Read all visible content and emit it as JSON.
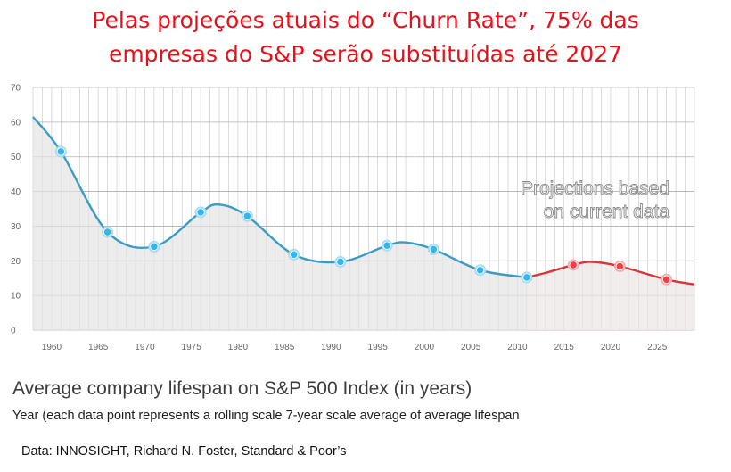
{
  "headline": {
    "line1": "Pelas projeções atuais do “Churn Rate”, 75% das",
    "line2": "empresas do S&P serão substituídas até 2027"
  },
  "caption": {
    "title": "Average company lifespan on S&P 500 Index (in years)",
    "subtitle": "Year (each data point represents a rolling scale 7-year scale average of average lifespan",
    "source": "Data: INNOSIGHT, Richard N. Foster, Standard & Poor’s"
  },
  "colors": {
    "headline": "#e8101a",
    "history_line": "#3a9cc4",
    "history_point": "#34b6ea",
    "projection_line": "#d9353a",
    "projection_point": "#e8414a",
    "area_fill": "#e4e4e4",
    "grid": "#c4c4c4"
  },
  "chart_data": {
    "type": "line",
    "x_ticks": [
      "1960",
      "1965",
      "1970",
      "1975",
      "1980",
      "1985",
      "1990",
      "1995",
      "2000",
      "2005",
      "2010",
      "2015",
      "2020",
      "2025"
    ],
    "y_ticks": [
      "0",
      "10",
      "20",
      "30",
      "40",
      "50",
      "60",
      "70"
    ],
    "xlim": [
      1958,
      2029
    ],
    "ylim": [
      0,
      70
    ],
    "grid": true,
    "area_filled": true,
    "annotation": [
      "Projections based",
      "on current data"
    ],
    "series": [
      {
        "role": "history",
        "points": [
          {
            "x": 1958,
            "y": 61.5
          },
          {
            "x": 1961,
            "y": 51.5
          },
          {
            "x": 1966,
            "y": 28.3
          },
          {
            "x": 1971,
            "y": 24.1
          },
          {
            "x": 1976,
            "y": 34.0
          },
          {
            "x": 1978,
            "y": 36.2
          },
          {
            "x": 1981,
            "y": 32.9
          },
          {
            "x": 1986,
            "y": 21.8
          },
          {
            "x": 1991,
            "y": 19.7
          },
          {
            "x": 1996,
            "y": 24.4
          },
          {
            "x": 1998,
            "y": 25.3
          },
          {
            "x": 2001,
            "y": 23.3
          },
          {
            "x": 2006,
            "y": 17.3
          },
          {
            "x": 2011,
            "y": 15.2
          }
        ],
        "markers": [
          1961,
          1966,
          1971,
          1976,
          1981,
          1986,
          1991,
          1996,
          2001,
          2006,
          2011
        ]
      },
      {
        "role": "projection",
        "points": [
          {
            "x": 2011,
            "y": 15.2
          },
          {
            "x": 2013,
            "y": 16.5
          },
          {
            "x": 2016,
            "y": 18.8
          },
          {
            "x": 2018,
            "y": 19.7
          },
          {
            "x": 2021,
            "y": 18.4
          },
          {
            "x": 2026,
            "y": 14.6
          },
          {
            "x": 2029,
            "y": 13.2
          }
        ],
        "markers": [
          2016,
          2021,
          2026
        ]
      }
    ]
  }
}
